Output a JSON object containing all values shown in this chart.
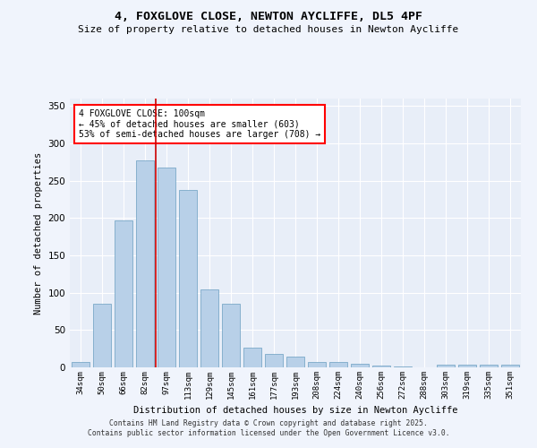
{
  "title1": "4, FOXGLOVE CLOSE, NEWTON AYCLIFFE, DL5 4PF",
  "title2": "Size of property relative to detached houses in Newton Aycliffe",
  "xlabel": "Distribution of detached houses by size in Newton Aycliffe",
  "ylabel": "Number of detached properties",
  "bar_color": "#b8d0e8",
  "bar_edgecolor": "#6a9ec0",
  "bg_color": "#e8eef8",
  "grid_color": "#ffffff",
  "categories": [
    "34sqm",
    "50sqm",
    "66sqm",
    "82sqm",
    "97sqm",
    "113sqm",
    "129sqm",
    "145sqm",
    "161sqm",
    "177sqm",
    "193sqm",
    "208sqm",
    "224sqm",
    "240sqm",
    "256sqm",
    "272sqm",
    "288sqm",
    "303sqm",
    "319sqm",
    "335sqm",
    "351sqm"
  ],
  "values": [
    7,
    85,
    197,
    277,
    268,
    238,
    105,
    85,
    27,
    18,
    15,
    7,
    7,
    5,
    3,
    1,
    0,
    4,
    4,
    4,
    4
  ],
  "vline_color": "#cc0000",
  "vline_index": 3.5,
  "annotation_text": "4 FOXGLOVE CLOSE: 100sqm\n← 45% of detached houses are smaller (603)\n53% of semi-detached houses are larger (708) →",
  "ylim": [
    0,
    360
  ],
  "yticks": [
    0,
    50,
    100,
    150,
    200,
    250,
    300,
    350
  ],
  "footer1": "Contains HM Land Registry data © Crown copyright and database right 2025.",
  "footer2": "Contains public sector information licensed under the Open Government Licence v3.0.",
  "fig_bg": "#f0f4fc"
}
